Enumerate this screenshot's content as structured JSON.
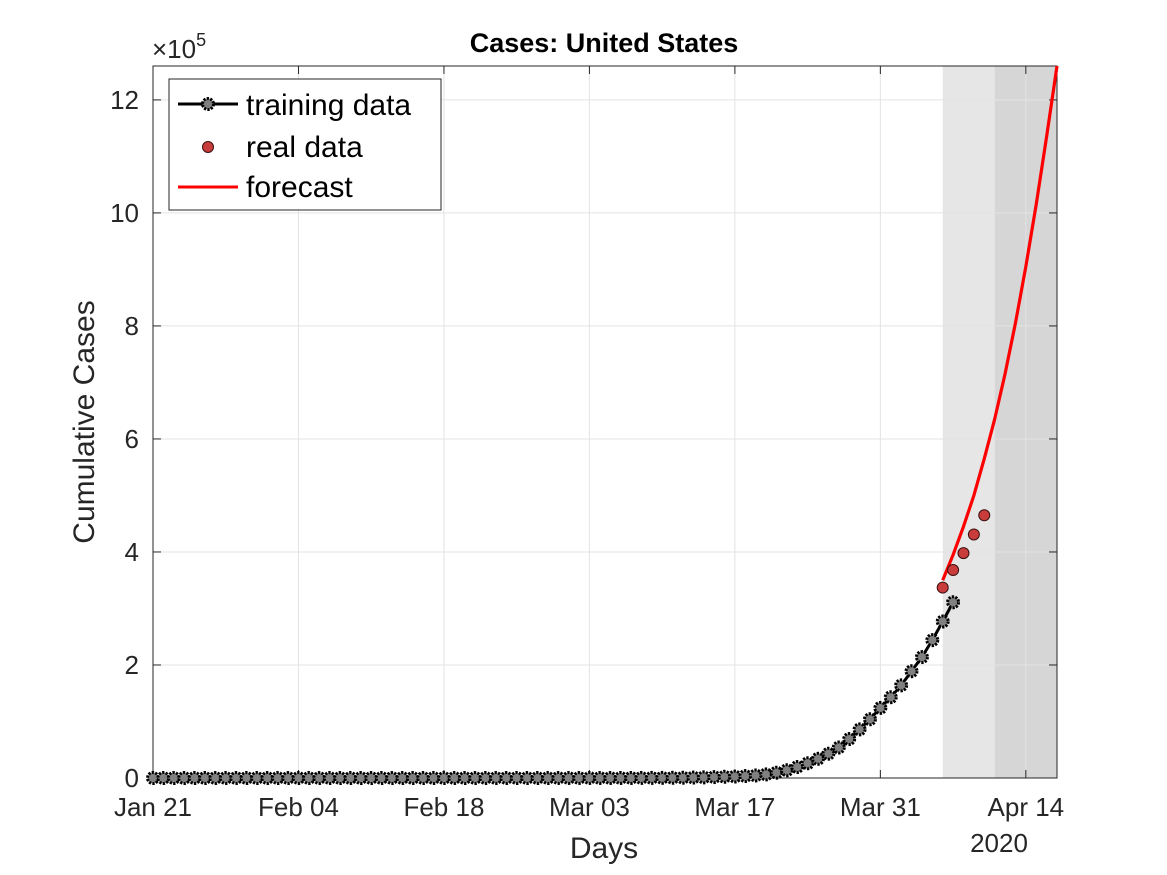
{
  "chart_data": {
    "type": "line",
    "title": "Cases: United States",
    "xlabel": "Days",
    "ylabel": "Cumulative Cases",
    "y_exponent_label": "×10",
    "y_exponent_power": "5",
    "x_secondary_label": "2020",
    "xlim": [
      "2020-01-21",
      "2020-04-17"
    ],
    "ylim": [
      0,
      12.6
    ],
    "y_unit_multiplier": 100000,
    "grid": true,
    "legend_position": "top-left",
    "x_ticks": [
      {
        "date": "2020-01-21",
        "label": "Jan 21"
      },
      {
        "date": "2020-02-04",
        "label": "Feb 04"
      },
      {
        "date": "2020-02-18",
        "label": "Feb 18"
      },
      {
        "date": "2020-03-03",
        "label": "Mar 03"
      },
      {
        "date": "2020-03-17",
        "label": "Mar 17"
      },
      {
        "date": "2020-03-31",
        "label": "Mar 31"
      },
      {
        "date": "2020-04-14",
        "label": "Apr 14"
      }
    ],
    "y_ticks": [
      {
        "value": 0,
        "label": "0"
      },
      {
        "value": 2,
        "label": "2"
      },
      {
        "value": 4,
        "label": "4"
      },
      {
        "value": 6,
        "label": "6"
      },
      {
        "value": 8,
        "label": "8"
      },
      {
        "value": 10,
        "label": "10"
      },
      {
        "value": 12,
        "label": "12"
      }
    ],
    "shaded_regions": [
      {
        "start": "2020-04-06",
        "end": "2020-04-11",
        "color": "#e6e6e6"
      },
      {
        "start": "2020-04-11",
        "end": "2020-04-17",
        "color": "#d6d6d6"
      }
    ],
    "series": [
      {
        "name": "training data",
        "kind": "line-markers",
        "color": "#000000",
        "marker_fill": "#808080",
        "x_start": "2020-01-21",
        "values": [
          1e-05,
          1e-05,
          2e-05,
          2e-05,
          5e-05,
          5e-05,
          5e-05,
          5e-05,
          5e-05,
          6e-05,
          7e-05,
          8e-05,
          8e-05,
          0.00011,
          0.00011,
          0.00011,
          0.00011,
          0.00012,
          0.00012,
          0.00012,
          0.00012,
          0.00012,
          0.00013,
          0.00013,
          0.00014,
          0.00014,
          0.00014,
          0.00014,
          0.00014,
          0.00014,
          0.00014,
          0.00015,
          0.00015,
          0.00015,
          0.00015,
          0.00015,
          0.00015,
          0.00015,
          0.00015,
          0.0006,
          0.0006,
          0.0006,
          0.0006,
          0.0006,
          0.0007,
          0.0007,
          0.0011,
          0.0016,
          0.0022,
          0.0031,
          0.0041,
          0.0054,
          0.0078,
          0.0113,
          0.0163,
          0.0224,
          0.0262,
          0.035,
          0.0449,
          0.0631,
          0.094,
          0.1375,
          0.195,
          0.26,
          0.34,
          0.43,
          0.54,
          0.69,
          0.86,
          1.04,
          1.24,
          1.43,
          1.64,
          1.89,
          2.14,
          2.44,
          2.77,
          3.11
        ]
      },
      {
        "name": "real data",
        "kind": "scatter",
        "color": "#c83c3c",
        "points": [
          {
            "date": "2020-04-06",
            "value": 3.37
          },
          {
            "date": "2020-04-07",
            "value": 3.68
          },
          {
            "date": "2020-04-08",
            "value": 3.98
          },
          {
            "date": "2020-04-09",
            "value": 4.31
          },
          {
            "date": "2020-04-10",
            "value": 4.65
          }
        ]
      },
      {
        "name": "forecast",
        "kind": "line",
        "color": "#ff0000",
        "points": [
          {
            "date": "2020-04-06",
            "value": 3.5
          },
          {
            "date": "2020-04-07",
            "value": 3.95
          },
          {
            "date": "2020-04-08",
            "value": 4.45
          },
          {
            "date": "2020-04-09",
            "value": 5.0
          },
          {
            "date": "2020-04-10",
            "value": 5.65
          },
          {
            "date": "2020-04-11",
            "value": 6.35
          },
          {
            "date": "2020-04-12",
            "value": 7.15
          },
          {
            "date": "2020-04-13",
            "value": 8.05
          },
          {
            "date": "2020-04-14",
            "value": 9.05
          },
          {
            "date": "2020-04-15",
            "value": 10.15
          },
          {
            "date": "2020-04-16",
            "value": 11.35
          },
          {
            "date": "2020-04-17",
            "value": 12.6
          }
        ]
      }
    ]
  }
}
